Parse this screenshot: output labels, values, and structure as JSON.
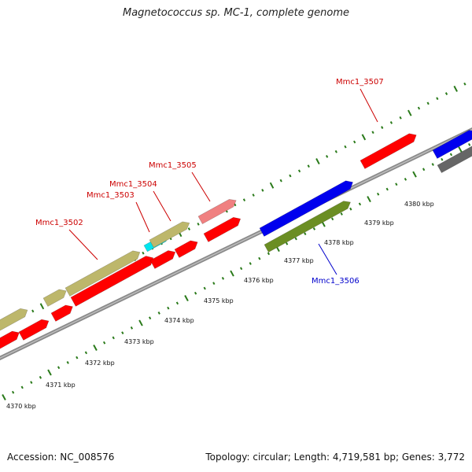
{
  "title": "Magnetococcus sp. MC-1, complete genome",
  "footer": {
    "accession": "Accession: NC_008576",
    "stats": "Topology: circular; Length: 4,719,581 bp; Genes: 3,772"
  },
  "colors": {
    "backbone": "#8a8a8a",
    "tick": "#2a7a1a",
    "gene_red": "#ff0000",
    "gene_pink": "#f08080",
    "gene_blue": "#0000ee",
    "gene_olive": "#6b8e23",
    "gene_khaki": "#bdb76b",
    "gene_cyan": "#00e5ee",
    "gene_gray": "#666666",
    "label_red": "#cc0000",
    "label_blue": "#0000cc"
  },
  "scale_labels": [
    "4370 kbp",
    "4371 kbp",
    "4372 kbp",
    "4373 kbp",
    "4374 kbp",
    "4375 kbp",
    "4376 kbp",
    "4377 kbp",
    "4378 kbp",
    "4379 kbp",
    "4380 kbp"
  ],
  "gene_labels": [
    {
      "text": "Mmc1_3502",
      "color": "red"
    },
    {
      "text": "Mmc1_3503",
      "color": "red"
    },
    {
      "text": "Mmc1_3504",
      "color": "red"
    },
    {
      "text": "Mmc1_3505",
      "color": "red"
    },
    {
      "text": "Mmc1_3506",
      "color": "blue"
    },
    {
      "text": "Mmc1_3507",
      "color": "red"
    }
  ]
}
